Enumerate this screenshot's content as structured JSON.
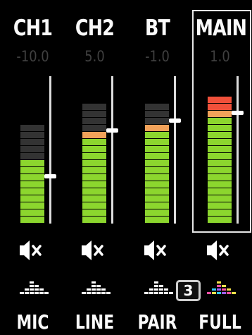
{
  "channels": [
    {
      "name": "CH1",
      "level": "-10.0",
      "source": "MIC",
      "meter_lit": 9,
      "meter_total": 14,
      "fader_pos": 0.32,
      "lit_colors": [
        "#8cd62e"
      ]
    },
    {
      "name": "CH2",
      "level": "5.0",
      "source": "LINE",
      "meter_lit": 13,
      "meter_total": 17,
      "fader_pos": 0.63,
      "lit_colors": [
        "#8cd62e",
        "#f2a25a"
      ]
    },
    {
      "name": "BT",
      "level": "-1.0",
      "source": "PAIR",
      "meter_lit": 14,
      "meter_total": 17,
      "fader_pos": 0.7,
      "lit_colors": [
        "#8cd62e",
        "#f2a25a"
      ]
    },
    {
      "name": "MAIN",
      "level": "1.0",
      "source": "FULL",
      "meter_lit": 18,
      "meter_total": 18,
      "fader_pos": 0.75,
      "lit_colors": [
        "#8cd62e",
        "#f2a25a",
        "#f0503a"
      ]
    }
  ],
  "badge": "3",
  "colors": {
    "green": "#8cd62e",
    "orange": "#f2a25a",
    "red": "#f0503a",
    "unlit": "#333333",
    "eq_white": "#ffffff",
    "eq_multicolor": [
      "#ff4fa3",
      "#f5e24a",
      "#33c9ff",
      "#a060ff"
    ]
  },
  "icons": {
    "mute": "speaker-mute-icon",
    "eq": "eq-bars-icon"
  }
}
